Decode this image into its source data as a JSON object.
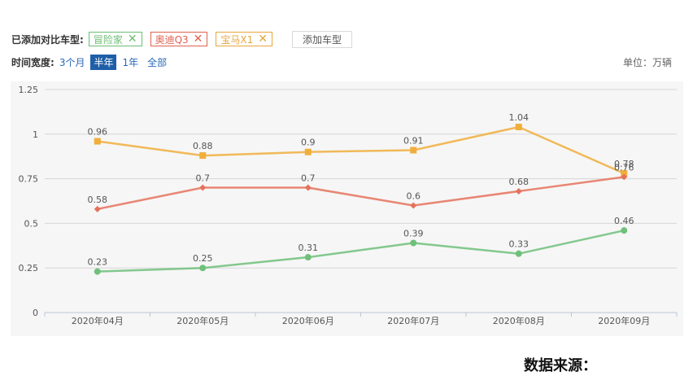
{
  "toolbar": {
    "label": "已添加对比车型:",
    "tags": [
      {
        "label": "冒险家",
        "color": "#6bbd72"
      },
      {
        "label": "奥迪Q3",
        "color": "#e0614f"
      },
      {
        "label": "宝马X1",
        "color": "#e8a63c"
      }
    ],
    "add_label": "添加车型"
  },
  "time_filter": {
    "label": "时间宽度:",
    "options": [
      "3个月",
      "半年",
      "1年",
      "全部"
    ],
    "selected": "半年"
  },
  "unit_label": "单位：万辆",
  "source_label": "数据来源：",
  "chart_data": {
    "type": "line",
    "categories": [
      "2020年04月",
      "2020年05月",
      "2020年06月",
      "2020年07月",
      "2020年08月",
      "2020年09月"
    ],
    "ylim": [
      0,
      1.25
    ],
    "yticks": [
      0,
      0.25,
      0.5,
      0.75,
      1,
      1.25
    ],
    "ytick_labels": [
      "0",
      "0.25",
      "0.5",
      "0.75",
      "1",
      "1.25"
    ],
    "grid": true,
    "series": [
      {
        "name": "宝马X1",
        "color": "#f0ae3c",
        "marker": "square",
        "values": [
          0.96,
          0.88,
          0.9,
          0.91,
          1.04,
          0.78
        ],
        "labels": [
          "0.96",
          "0.88",
          "0.9",
          "0.91",
          "1.04",
          "0.78"
        ]
      },
      {
        "name": "奥迪Q3",
        "color": "#e5725c",
        "marker": "diamond",
        "values": [
          0.58,
          0.7,
          0.7,
          0.6,
          0.68,
          0.76
        ],
        "labels": [
          "0.58",
          "0.7",
          "0.7",
          "0.6",
          "0.68",
          "0.76"
        ]
      },
      {
        "name": "冒险家",
        "color": "#6fc07a",
        "marker": "circle",
        "values": [
          0.23,
          0.25,
          0.31,
          0.39,
          0.33,
          0.46
        ],
        "labels": [
          "0.23",
          "0.25",
          "0.31",
          "0.39",
          "0.33",
          "0.46"
        ]
      }
    ]
  }
}
